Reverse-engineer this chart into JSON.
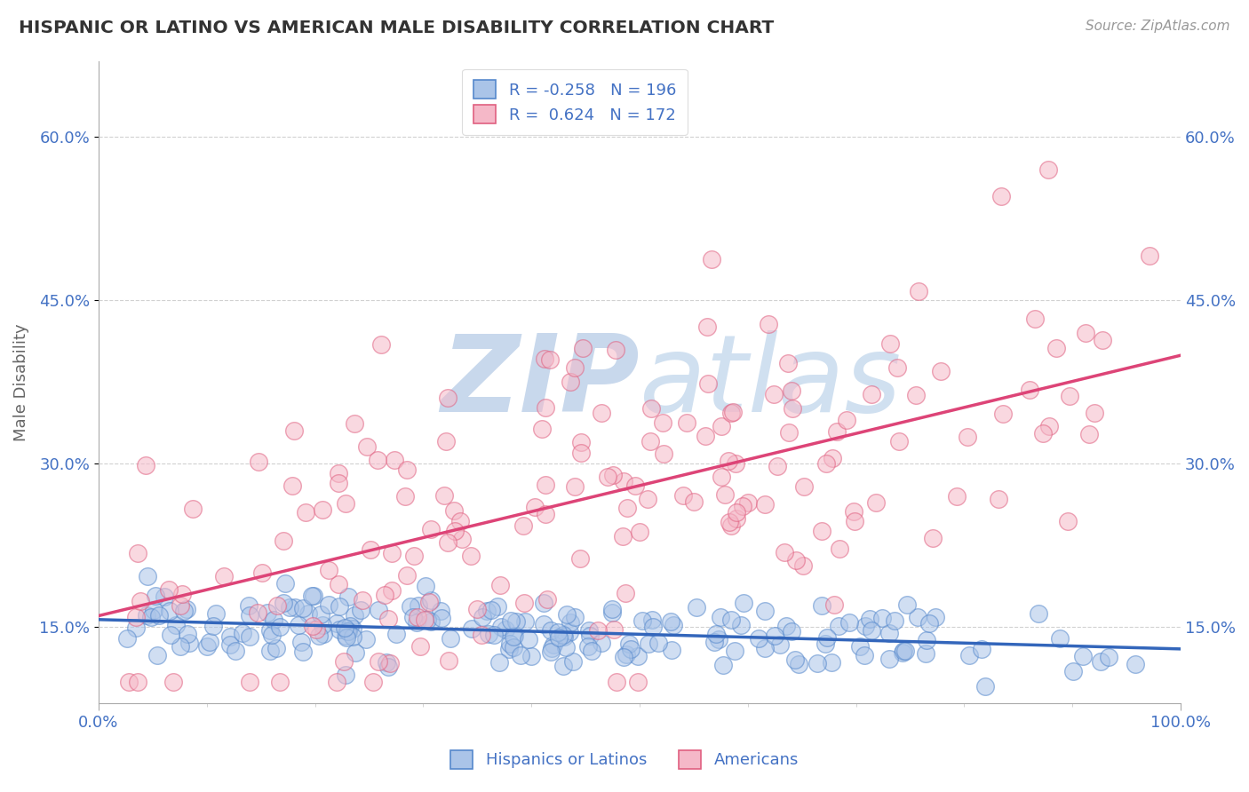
{
  "title": "HISPANIC OR LATINO VS AMERICAN MALE DISABILITY CORRELATION CHART",
  "source_text": "Source: ZipAtlas.com",
  "ylabel": "Male Disability",
  "blue_R": -0.258,
  "blue_N": 196,
  "pink_R": 0.624,
  "pink_N": 172,
  "blue_color": "#aac4e8",
  "blue_edge_color": "#5588cc",
  "blue_line_color": "#3366bb",
  "pink_color": "#f5b8c8",
  "pink_edge_color": "#e06080",
  "pink_line_color": "#dd4477",
  "title_color": "#333333",
  "legend_text_color": "#4472c4",
  "axis_label_color": "#4472c4",
  "background_color": "#ffffff",
  "watermark_color": "#c8d8ec",
  "xlim": [
    0.0,
    1.0
  ],
  "ylim": [
    0.08,
    0.67
  ],
  "x_ticks": [
    0.0,
    1.0
  ],
  "x_tick_labels": [
    "0.0%",
    "100.0%"
  ],
  "y_ticks": [
    0.15,
    0.3,
    0.45,
    0.6
  ],
  "y_tick_labels": [
    "15.0%",
    "30.0%",
    "45.0%",
    "60.0%"
  ]
}
